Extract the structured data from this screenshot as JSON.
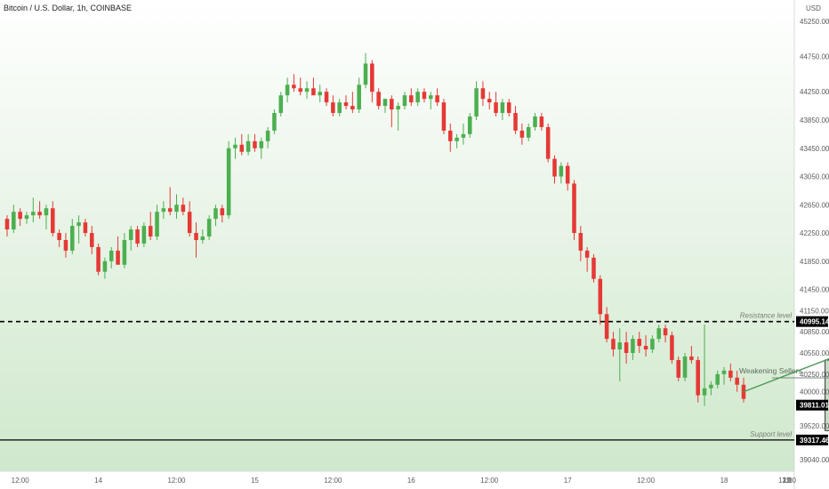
{
  "chart_data": {
    "type": "candlestick",
    "title": "Bitcoin / U.S. Dollar, 1h, COINBASE",
    "currency": "USD",
    "ylim": [
      38900,
      45500
    ],
    "y_ticks": [
      45250,
      44750,
      44250,
      43850,
      43450,
      43050,
      42650,
      42250,
      41850,
      41450,
      41150,
      40850,
      40550,
      40250,
      40000,
      39520,
      39040
    ],
    "y_tick_labels": [
      "45250.00",
      "44750.00",
      "44250.00",
      "43850.00",
      "43450.00",
      "43050.00",
      "42650.00",
      "42250.00",
      "41850.00",
      "41450.00",
      "41150.00",
      "40850.00",
      "40550.00",
      "40250.00",
      "40000.00",
      "39520.00",
      "39040.00"
    ],
    "x_labels": [
      {
        "label": "12:00",
        "index": 2
      },
      {
        "label": "14",
        "index": 14
      },
      {
        "label": "12:00",
        "index": 26
      },
      {
        "label": "15",
        "index": 38
      },
      {
        "label": "12:00",
        "index": 50
      },
      {
        "label": "16",
        "index": 62
      },
      {
        "label": "12:00",
        "index": 74
      },
      {
        "label": "17",
        "index": 86
      },
      {
        "label": "12:00",
        "index": 98
      },
      {
        "label": "18",
        "index": 110
      },
      {
        "label": "12:00",
        "index": 122
      },
      {
        "label": "19",
        "index": 134
      },
      {
        "label": "12:",
        "index": 146
      }
    ],
    "candles": [
      [
        42450,
        42500,
        42200,
        42300
      ],
      [
        42300,
        42650,
        42250,
        42550
      ],
      [
        42550,
        42600,
        42350,
        42450
      ],
      [
        42450,
        42550,
        42380,
        42500
      ],
      [
        42500,
        42750,
        42400,
        42550
      ],
      [
        42550,
        42700,
        42450,
        42500
      ],
      [
        42500,
        42650,
        42300,
        42600
      ],
      [
        42600,
        42700,
        42200,
        42250
      ],
      [
        42250,
        42300,
        42050,
        42150
      ],
      [
        42150,
        42250,
        41900,
        42000
      ],
      [
        42000,
        42450,
        41950,
        42350
      ],
      [
        42350,
        42500,
        42100,
        42400
      ],
      [
        42400,
        42450,
        42200,
        42250
      ],
      [
        42250,
        42350,
        41950,
        42050
      ],
      [
        42050,
        42100,
        41650,
        41700
      ],
      [
        41700,
        41900,
        41600,
        41850
      ],
      [
        41850,
        42050,
        41750,
        42000
      ],
      [
        42000,
        42200,
        41850,
        41800
      ],
      [
        41800,
        42250,
        41750,
        42150
      ],
      [
        42150,
        42350,
        42000,
        42300
      ],
      [
        42300,
        42350,
        42050,
        42100
      ],
      [
        42100,
        42400,
        42050,
        42350
      ],
      [
        42350,
        42550,
        42150,
        42200
      ],
      [
        42200,
        42650,
        42150,
        42550
      ],
      [
        42550,
        42700,
        42450,
        42600
      ],
      [
        42600,
        42900,
        42500,
        42550
      ],
      [
        42550,
        42800,
        42450,
        42650
      ],
      [
        42650,
        42750,
        42500,
        42550
      ],
      [
        42550,
        42700,
        42200,
        42250
      ],
      [
        42250,
        42400,
        41900,
        42150
      ],
      [
        42150,
        42300,
        42100,
        42200
      ],
      [
        42200,
        42500,
        42150,
        42450
      ],
      [
        42450,
        42650,
        42350,
        42600
      ],
      [
        42600,
        42650,
        42400,
        42500
      ],
      [
        42500,
        43550,
        42450,
        43450
      ],
      [
        43450,
        43600,
        43300,
        43500
      ],
      [
        43500,
        43650,
        43350,
        43400
      ],
      [
        43400,
        43650,
        43350,
        43550
      ],
      [
        43550,
        43650,
        43400,
        43450
      ],
      [
        43450,
        43600,
        43300,
        43550
      ],
      [
        43550,
        43750,
        43450,
        43700
      ],
      [
        43700,
        44000,
        43650,
        43950
      ],
      [
        43950,
        44250,
        43900,
        44200
      ],
      [
        44200,
        44450,
        44100,
        44350
      ],
      [
        44350,
        44500,
        44250,
        44300
      ],
      [
        44300,
        44450,
        44200,
        44250
      ],
      [
        44250,
        44400,
        44150,
        44300
      ],
      [
        44300,
        44450,
        44250,
        44200
      ],
      [
        44200,
        44350,
        44100,
        44250
      ],
      [
        44250,
        44300,
        44050,
        44100
      ],
      [
        44100,
        44200,
        43900,
        43950
      ],
      [
        43950,
        44150,
        43900,
        44100
      ],
      [
        44100,
        44200,
        44000,
        44050
      ],
      [
        44050,
        44250,
        43950,
        44000
      ],
      [
        44000,
        44450,
        43950,
        44350
      ],
      [
        44350,
        44800,
        44300,
        44650
      ],
      [
        44650,
        44700,
        44100,
        44250
      ],
      [
        44250,
        44300,
        44000,
        44050
      ],
      [
        44050,
        44150,
        43950,
        44150
      ],
      [
        44150,
        44200,
        43750,
        44000
      ],
      [
        44000,
        44100,
        43700,
        44050
      ],
      [
        44050,
        44250,
        44000,
        44200
      ],
      [
        44200,
        44300,
        44050,
        44100
      ],
      [
        44100,
        44300,
        44050,
        44250
      ],
      [
        44250,
        44300,
        44100,
        44150
      ],
      [
        44150,
        44250,
        44000,
        44200
      ],
      [
        44200,
        44300,
        44050,
        44100
      ],
      [
        44100,
        44150,
        43650,
        43700
      ],
      [
        43700,
        43800,
        43400,
        43550
      ],
      [
        43550,
        43650,
        43450,
        43600
      ],
      [
        43600,
        43800,
        43500,
        43650
      ],
      [
        43650,
        43950,
        43600,
        43900
      ],
      [
        43900,
        44400,
        43850,
        44300
      ],
      [
        44300,
        44400,
        44050,
        44150
      ],
      [
        44150,
        44250,
        44000,
        44100
      ],
      [
        44100,
        44250,
        43900,
        43950
      ],
      [
        43950,
        44150,
        43850,
        44100
      ],
      [
        44100,
        44150,
        43900,
        43950
      ],
      [
        43950,
        44050,
        43650,
        43700
      ],
      [
        43700,
        43800,
        43500,
        43600
      ],
      [
        43600,
        43800,
        43550,
        43750
      ],
      [
        43750,
        43950,
        43700,
        43900
      ],
      [
        43900,
        43950,
        43700,
        43750
      ],
      [
        43750,
        43800,
        43250,
        43300
      ],
      [
        43300,
        43350,
        42950,
        43050
      ],
      [
        43050,
        43250,
        42950,
        43200
      ],
      [
        43200,
        43250,
        42850,
        42950
      ],
      [
        42950,
        43000,
        42150,
        42250
      ],
      [
        42250,
        42350,
        41850,
        42000
      ],
      [
        42000,
        42050,
        41700,
        41900
      ],
      [
        41900,
        41950,
        41550,
        41600
      ],
      [
        41600,
        41650,
        40950,
        41100
      ],
      [
        41100,
        41200,
        40700,
        40750
      ],
      [
        40750,
        40850,
        40500,
        40600
      ],
      [
        40600,
        40900,
        40150,
        40700
      ],
      [
        40700,
        40850,
        40400,
        40550
      ],
      [
        40550,
        40800,
        40450,
        40750
      ],
      [
        40750,
        40850,
        40550,
        40650
      ],
      [
        40650,
        40800,
        40500,
        40600
      ],
      [
        40600,
        40800,
        40550,
        40750
      ],
      [
        40750,
        40950,
        40700,
        40900
      ],
      [
        40900,
        40950,
        40700,
        40800
      ],
      [
        40800,
        40850,
        40400,
        40450
      ],
      [
        40450,
        40500,
        40150,
        40200
      ],
      [
        40200,
        40550,
        40150,
        40500
      ],
      [
        40500,
        40650,
        40400,
        40450
      ],
      [
        40450,
        40500,
        39850,
        39950
      ],
      [
        39950,
        40950,
        39800,
        40050
      ],
      [
        40050,
        40150,
        39950,
        40100
      ],
      [
        40100,
        40300,
        40050,
        40250
      ],
      [
        40250,
        40350,
        40100,
        40300
      ],
      [
        40300,
        40400,
        40150,
        40200
      ],
      [
        40200,
        40300,
        40000,
        40100
      ],
      [
        40100,
        40200,
        39850,
        39900
      ]
    ],
    "resistance": {
      "value": 40995.14,
      "label": "40995.14",
      "note": "Resistance level"
    },
    "support": {
      "value": 39317.46,
      "label": "39317.46",
      "note": "Support level"
    },
    "current_price": {
      "value": 39811.01,
      "label": "39811.01"
    },
    "box_annotation": {
      "label": "Weakening Sellers",
      "x_from": 126,
      "x_to": 135,
      "y_from": 39450,
      "y_to": 40450
    },
    "colors": {
      "up": "#4caf50",
      "down": "#e53935",
      "bg_top": "#ffffff",
      "bg_bottom": "#cfe8cc",
      "box_fill": "#9bbf97",
      "arrow": "#4a9a52",
      "line": "#000000"
    }
  }
}
